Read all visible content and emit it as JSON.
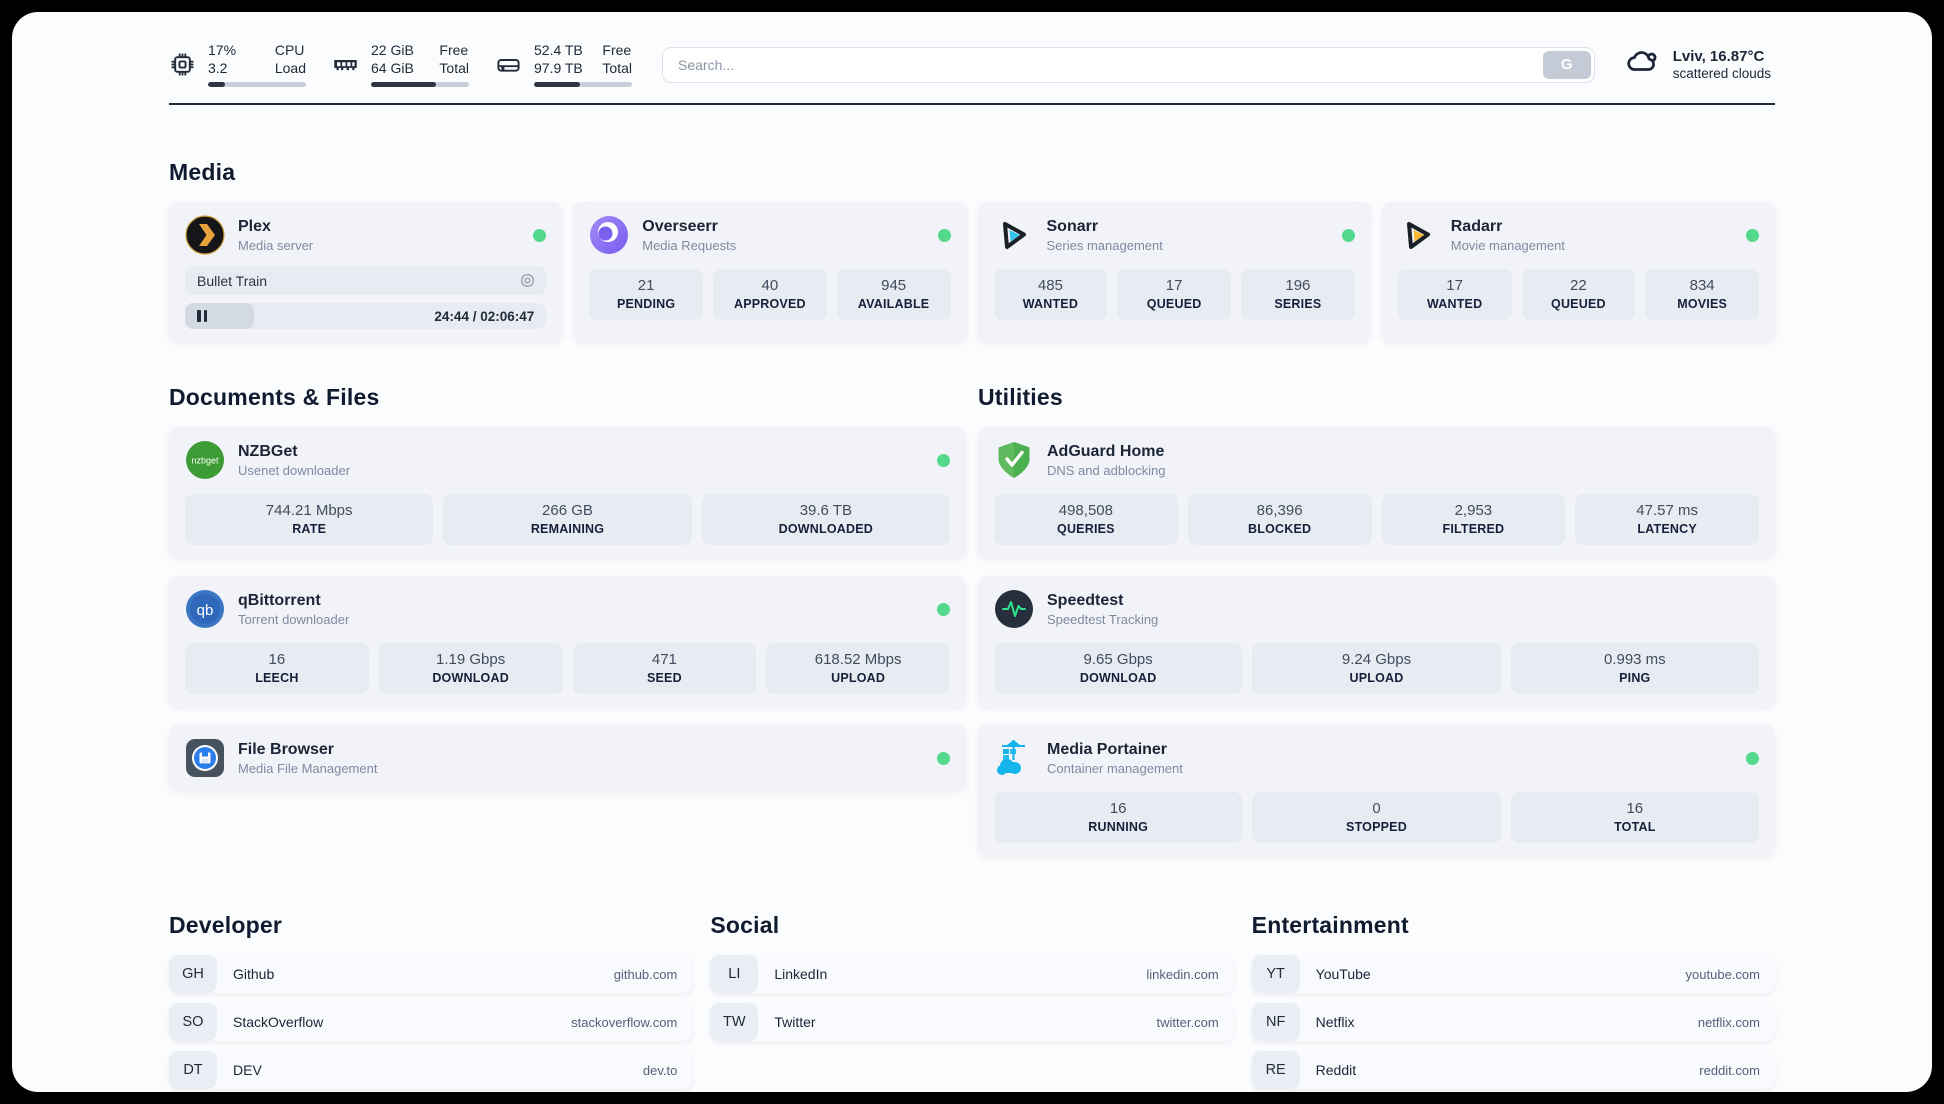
{
  "colors": {
    "status_green": "#54d98c",
    "dark": "#222b3a"
  },
  "header": {
    "stats": [
      {
        "icon": "cpu-icon",
        "values": [
          "17%",
          "3.2"
        ],
        "labels": [
          "CPU",
          "Load"
        ],
        "progress": 17
      },
      {
        "icon": "ram-icon",
        "values": [
          "22 GiB",
          "64 GiB"
        ],
        "labels": [
          "Free",
          "Total"
        ],
        "progress": 66
      },
      {
        "icon": "disk-icon",
        "values": [
          "52.4 TB",
          "97.9 TB"
        ],
        "labels": [
          "Free",
          "Total"
        ],
        "progress": 47
      }
    ],
    "search": {
      "placeholder": "Search...",
      "button": "G"
    },
    "weather": {
      "line1": "Lviv, 16.87°C",
      "line2": "scattered clouds"
    }
  },
  "sections": {
    "media": {
      "title": "Media",
      "plex": {
        "name": "Plex",
        "subtitle": "Media server",
        "now_playing": "Bullet Train",
        "time": "24:44 / 02:06:47",
        "progress": 19
      },
      "overseerr": {
        "name": "Overseerr",
        "subtitle": "Media Requests",
        "stats": [
          {
            "value": "21",
            "label": "PENDING"
          },
          {
            "value": "40",
            "label": "APPROVED"
          },
          {
            "value": "945",
            "label": "AVAILABLE"
          }
        ]
      },
      "sonarr": {
        "name": "Sonarr",
        "subtitle": "Series management",
        "stats": [
          {
            "value": "485",
            "label": "WANTED"
          },
          {
            "value": "17",
            "label": "QUEUED"
          },
          {
            "value": "196",
            "label": "SERIES"
          }
        ]
      },
      "radarr": {
        "name": "Radarr",
        "subtitle": "Movie management",
        "stats": [
          {
            "value": "17",
            "label": "WANTED"
          },
          {
            "value": "22",
            "label": "QUEUED"
          },
          {
            "value": "834",
            "label": "MOVIES"
          }
        ]
      }
    },
    "documents": {
      "title": "Documents & Files",
      "nzbget": {
        "name": "NZBGet",
        "subtitle": "Usenet downloader",
        "stats": [
          {
            "value": "744.21 Mbps",
            "label": "RATE"
          },
          {
            "value": "266 GB",
            "label": "REMAINING"
          },
          {
            "value": "39.6 TB",
            "label": "DOWNLOADED"
          }
        ]
      },
      "qbittorrent": {
        "name": "qBittorrent",
        "subtitle": "Torrent downloader",
        "stats": [
          {
            "value": "16",
            "label": "LEECH"
          },
          {
            "value": "1.19 Gbps",
            "label": "DOWNLOAD"
          },
          {
            "value": "471",
            "label": "SEED"
          },
          {
            "value": "618.52 Mbps",
            "label": "UPLOAD"
          }
        ]
      },
      "filebrowser": {
        "name": "File Browser",
        "subtitle": "Media File Management"
      }
    },
    "utilities": {
      "title": "Utilities",
      "adguard": {
        "name": "AdGuard Home",
        "subtitle": "DNS and adblocking",
        "stats": [
          {
            "value": "498,508",
            "label": "QUERIES"
          },
          {
            "value": "86,396",
            "label": "BLOCKED"
          },
          {
            "value": "2,953",
            "label": "FILTERED"
          },
          {
            "value": "47.57 ms",
            "label": "LATENCY"
          }
        ]
      },
      "speedtest": {
        "name": "Speedtest",
        "subtitle": "Speedtest Tracking",
        "stats": [
          {
            "value": "9.65 Gbps",
            "label": "DOWNLOAD"
          },
          {
            "value": "9.24 Gbps",
            "label": "UPLOAD"
          },
          {
            "value": "0.993 ms",
            "label": "PING"
          }
        ]
      },
      "portainer": {
        "name": "Media Portainer",
        "subtitle": "Container management",
        "stats": [
          {
            "value": "16",
            "label": "RUNNING"
          },
          {
            "value": "0",
            "label": "STOPPED"
          },
          {
            "value": "16",
            "label": "TOTAL"
          }
        ]
      }
    },
    "links": {
      "developer": {
        "title": "Developer",
        "items": [
          {
            "tag": "GH",
            "name": "Github",
            "url": "github.com"
          },
          {
            "tag": "SO",
            "name": "StackOverflow",
            "url": "stackoverflow.com"
          },
          {
            "tag": "DT",
            "name": "DEV",
            "url": "dev.to"
          }
        ]
      },
      "social": {
        "title": "Social",
        "items": [
          {
            "tag": "LI",
            "name": "LinkedIn",
            "url": "linkedin.com"
          },
          {
            "tag": "TW",
            "name": "Twitter",
            "url": "twitter.com"
          }
        ]
      },
      "entertainment": {
        "title": "Entertainment",
        "items": [
          {
            "tag": "YT",
            "name": "YouTube",
            "url": "youtube.com"
          },
          {
            "tag": "NF",
            "name": "Netflix",
            "url": "netflix.com"
          },
          {
            "tag": "RE",
            "name": "Reddit",
            "url": "reddit.com"
          }
        ]
      }
    }
  }
}
